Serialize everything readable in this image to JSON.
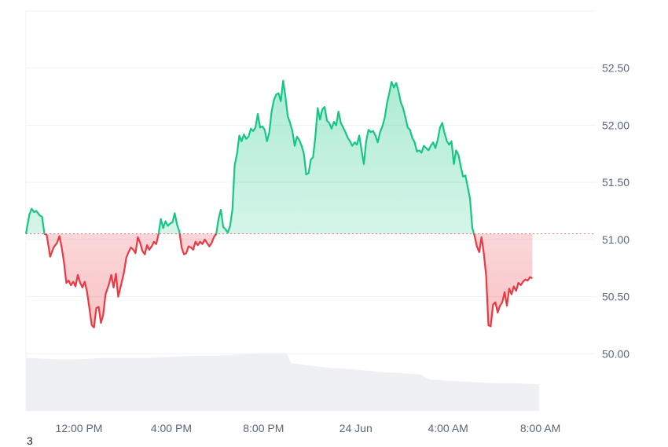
{
  "chart_data": {
    "type": "area",
    "baseline": 51.05,
    "ylim": [
      49.5,
      53.0
    ],
    "y_ticks": [
      50.0,
      50.5,
      51.0,
      51.5,
      52.0,
      52.5
    ],
    "y_tick_labels": [
      "50.00",
      "50.50",
      "51.00",
      "51.50",
      "52.00",
      "52.50"
    ],
    "x_tick_labels": [
      "12:00 PM",
      "4:00 PM",
      "8:00 PM",
      "24 Jun",
      "4:00 AM",
      "8:00 AM"
    ],
    "xlim": [
      9.7,
      34.4
    ],
    "x_ticks": [
      12,
      16,
      20,
      24,
      28,
      32
    ],
    "grid": true,
    "colors": {
      "up": "#16c784",
      "down": "#ea3943",
      "volume": "#eef0f3",
      "grid": "#eff2f5",
      "baseline": "#ea3943"
    },
    "series": [
      {
        "values": [
          [
            9.7,
            51.05
          ],
          [
            9.85,
            51.22
          ],
          [
            9.95,
            51.27
          ],
          [
            10.05,
            51.24
          ],
          [
            10.15,
            51.25
          ],
          [
            10.3,
            51.21
          ],
          [
            10.4,
            51.2
          ],
          [
            10.5,
            51.05
          ],
          [
            10.6,
            51.04
          ],
          [
            10.75,
            50.85
          ],
          [
            10.9,
            50.93
          ],
          [
            11.05,
            50.97
          ],
          [
            11.15,
            51.03
          ],
          [
            11.25,
            50.93
          ],
          [
            11.35,
            50.8
          ],
          [
            11.45,
            50.62
          ],
          [
            11.55,
            50.64
          ],
          [
            11.65,
            50.6
          ],
          [
            11.75,
            50.63
          ],
          [
            11.85,
            50.59
          ],
          [
            11.95,
            50.69
          ],
          [
            12.05,
            50.62
          ],
          [
            12.15,
            50.58
          ],
          [
            12.25,
            50.63
          ],
          [
            12.35,
            50.54
          ],
          [
            12.45,
            50.4
          ],
          [
            12.55,
            50.25
          ],
          [
            12.65,
            50.23
          ],
          [
            12.75,
            50.4
          ],
          [
            12.85,
            50.41
          ],
          [
            12.95,
            50.27
          ],
          [
            13.05,
            50.34
          ],
          [
            13.15,
            50.52
          ],
          [
            13.3,
            50.61
          ],
          [
            13.4,
            50.69
          ],
          [
            13.5,
            50.58
          ],
          [
            13.6,
            50.7
          ],
          [
            13.7,
            50.5
          ],
          [
            13.8,
            50.58
          ],
          [
            13.95,
            50.71
          ],
          [
            14.05,
            50.84
          ],
          [
            14.15,
            50.89
          ],
          [
            14.25,
            50.93
          ],
          [
            14.35,
            50.91
          ],
          [
            14.45,
            50.88
          ],
          [
            14.55,
            51.02
          ],
          [
            14.65,
            50.97
          ],
          [
            14.75,
            50.9
          ],
          [
            14.85,
            50.87
          ],
          [
            14.95,
            50.95
          ],
          [
            15.05,
            50.91
          ],
          [
            15.15,
            50.94
          ],
          [
            15.25,
            50.98
          ],
          [
            15.35,
            50.96
          ],
          [
            15.45,
            51.05
          ],
          [
            15.55,
            51.18
          ],
          [
            15.65,
            51.1
          ],
          [
            15.75,
            51.16
          ],
          [
            15.85,
            51.12
          ],
          [
            15.95,
            51.14
          ],
          [
            16.05,
            51.15
          ],
          [
            16.15,
            51.23
          ],
          [
            16.25,
            51.13
          ],
          [
            16.35,
            51.07
          ],
          [
            16.45,
            50.93
          ],
          [
            16.55,
            50.87
          ],
          [
            16.65,
            50.88
          ],
          [
            16.75,
            50.94
          ],
          [
            16.85,
            50.93
          ],
          [
            16.95,
            50.91
          ],
          [
            17.05,
            50.98
          ],
          [
            17.15,
            50.95
          ],
          [
            17.25,
            50.98
          ],
          [
            17.35,
            50.96
          ],
          [
            17.45,
            51.0
          ],
          [
            17.55,
            50.97
          ],
          [
            17.65,
            50.94
          ],
          [
            17.75,
            50.97
          ],
          [
            17.85,
            51.02
          ],
          [
            17.95,
            51.05
          ],
          [
            18.05,
            51.18
          ],
          [
            18.15,
            51.26
          ],
          [
            18.25,
            51.11
          ],
          [
            18.35,
            51.09
          ],
          [
            18.45,
            51.06
          ],
          [
            18.55,
            51.12
          ],
          [
            18.65,
            51.26
          ],
          [
            18.75,
            51.65
          ],
          [
            18.85,
            51.75
          ],
          [
            18.95,
            51.91
          ],
          [
            19.05,
            51.86
          ],
          [
            19.15,
            51.92
          ],
          [
            19.25,
            51.88
          ],
          [
            19.35,
            51.9
          ],
          [
            19.45,
            51.97
          ],
          [
            19.55,
            51.95
          ],
          [
            19.65,
            51.98
          ],
          [
            19.75,
            52.1
          ],
          [
            19.85,
            51.98
          ],
          [
            19.95,
            51.99
          ],
          [
            20.05,
            51.96
          ],
          [
            20.15,
            51.86
          ],
          [
            20.25,
            51.94
          ],
          [
            20.35,
            52.12
          ],
          [
            20.45,
            52.22
          ],
          [
            20.55,
            52.27
          ],
          [
            20.65,
            52.28
          ],
          [
            20.75,
            52.21
          ],
          [
            20.85,
            52.39
          ],
          [
            20.95,
            52.25
          ],
          [
            21.05,
            52.08
          ],
          [
            21.15,
            52.02
          ],
          [
            21.25,
            51.95
          ],
          [
            21.35,
            51.82
          ],
          [
            21.45,
            51.9
          ],
          [
            21.55,
            51.87
          ],
          [
            21.65,
            51.82
          ],
          [
            21.75,
            51.75
          ],
          [
            21.85,
            51.57
          ],
          [
            21.95,
            51.58
          ],
          [
            22.05,
            51.7
          ],
          [
            22.15,
            51.72
          ],
          [
            22.25,
            51.91
          ],
          [
            22.35,
            52.15
          ],
          [
            22.45,
            52.05
          ],
          [
            22.55,
            52.14
          ],
          [
            22.65,
            52.16
          ],
          [
            22.75,
            52.04
          ],
          [
            22.85,
            52.02
          ],
          [
            22.95,
            51.97
          ],
          [
            23.05,
            52.03
          ],
          [
            23.15,
            52.0
          ],
          [
            23.25,
            52.12
          ],
          [
            23.35,
            52.02
          ],
          [
            23.45,
            51.98
          ],
          [
            23.55,
            51.94
          ],
          [
            23.65,
            51.89
          ],
          [
            23.75,
            51.86
          ],
          [
            23.85,
            51.82
          ],
          [
            23.95,
            51.85
          ],
          [
            24.05,
            51.83
          ],
          [
            24.15,
            51.91
          ],
          [
            24.25,
            51.78
          ],
          [
            24.35,
            51.66
          ],
          [
            24.45,
            51.86
          ],
          [
            24.55,
            51.96
          ],
          [
            24.65,
            51.94
          ],
          [
            24.75,
            51.95
          ],
          [
            24.85,
            51.91
          ],
          [
            24.95,
            51.85
          ],
          [
            25.05,
            51.94
          ],
          [
            25.15,
            51.99
          ],
          [
            25.25,
            52.06
          ],
          [
            25.35,
            52.19
          ],
          [
            25.45,
            52.28
          ],
          [
            25.55,
            52.38
          ],
          [
            25.65,
            52.33
          ],
          [
            25.75,
            52.37
          ],
          [
            25.85,
            52.3
          ],
          [
            25.95,
            52.2
          ],
          [
            26.05,
            52.15
          ],
          [
            26.15,
            52.07
          ],
          [
            26.25,
            51.98
          ],
          [
            26.35,
            51.96
          ],
          [
            26.45,
            51.89
          ],
          [
            26.55,
            51.85
          ],
          [
            26.65,
            51.77
          ],
          [
            26.75,
            51.78
          ],
          [
            26.85,
            51.76
          ],
          [
            26.95,
            51.82
          ],
          [
            27.05,
            51.8
          ],
          [
            27.15,
            51.78
          ],
          [
            27.25,
            51.82
          ],
          [
            27.35,
            51.85
          ],
          [
            27.45,
            51.8
          ],
          [
            27.55,
            51.87
          ],
          [
            27.65,
            51.98
          ],
          [
            27.75,
            52.02
          ],
          [
            27.85,
            51.93
          ],
          [
            27.95,
            51.86
          ],
          [
            28.05,
            51.83
          ],
          [
            28.15,
            51.86
          ],
          [
            28.25,
            51.66
          ],
          [
            28.35,
            51.78
          ],
          [
            28.45,
            51.74
          ],
          [
            28.55,
            51.64
          ],
          [
            28.65,
            51.55
          ],
          [
            28.75,
            51.56
          ],
          [
            28.85,
            51.46
          ],
          [
            28.95,
            51.36
          ],
          [
            29.05,
            51.1
          ],
          [
            29.15,
            51.03
          ],
          [
            29.25,
            50.94
          ],
          [
            29.35,
            50.89
          ],
          [
            29.45,
            51.02
          ],
          [
            29.55,
            50.88
          ],
          [
            29.65,
            50.68
          ],
          [
            29.75,
            50.25
          ],
          [
            29.85,
            50.24
          ],
          [
            29.95,
            50.43
          ],
          [
            30.05,
            50.45
          ],
          [
            30.15,
            50.36
          ],
          [
            30.25,
            50.42
          ],
          [
            30.35,
            50.45
          ],
          [
            30.45,
            50.54
          ],
          [
            30.55,
            50.42
          ],
          [
            30.65,
            50.57
          ],
          [
            30.75,
            50.52
          ],
          [
            30.85,
            50.59
          ],
          [
            30.95,
            50.55
          ],
          [
            31.05,
            50.62
          ],
          [
            31.15,
            50.6
          ],
          [
            31.25,
            50.63
          ],
          [
            31.35,
            50.65
          ],
          [
            31.45,
            50.64
          ],
          [
            31.55,
            50.67
          ],
          [
            31.65,
            50.66
          ]
        ]
      }
    ],
    "volume": [
      [
        9.7,
        0.42
      ],
      [
        10.0,
        0.42
      ],
      [
        11.0,
        0.41
      ],
      [
        12.0,
        0.41
      ],
      [
        13.0,
        0.42
      ],
      [
        14.0,
        0.42
      ],
      [
        15.0,
        0.42
      ],
      [
        16.0,
        0.43
      ],
      [
        17.0,
        0.44
      ],
      [
        18.0,
        0.44
      ],
      [
        19.0,
        0.45
      ],
      [
        20.0,
        0.46
      ],
      [
        21.0,
        0.46
      ],
      [
        21.2,
        0.38
      ],
      [
        22.0,
        0.36
      ],
      [
        23.0,
        0.34
      ],
      [
        24.0,
        0.33
      ],
      [
        25.0,
        0.31
      ],
      [
        26.0,
        0.3
      ],
      [
        26.8,
        0.29
      ],
      [
        27.2,
        0.25
      ],
      [
        28.0,
        0.24
      ],
      [
        29.0,
        0.23
      ],
      [
        30.0,
        0.22
      ],
      [
        31.0,
        0.22
      ],
      [
        31.95,
        0.21
      ]
    ]
  },
  "footer": {
    "corner_label": "3"
  }
}
